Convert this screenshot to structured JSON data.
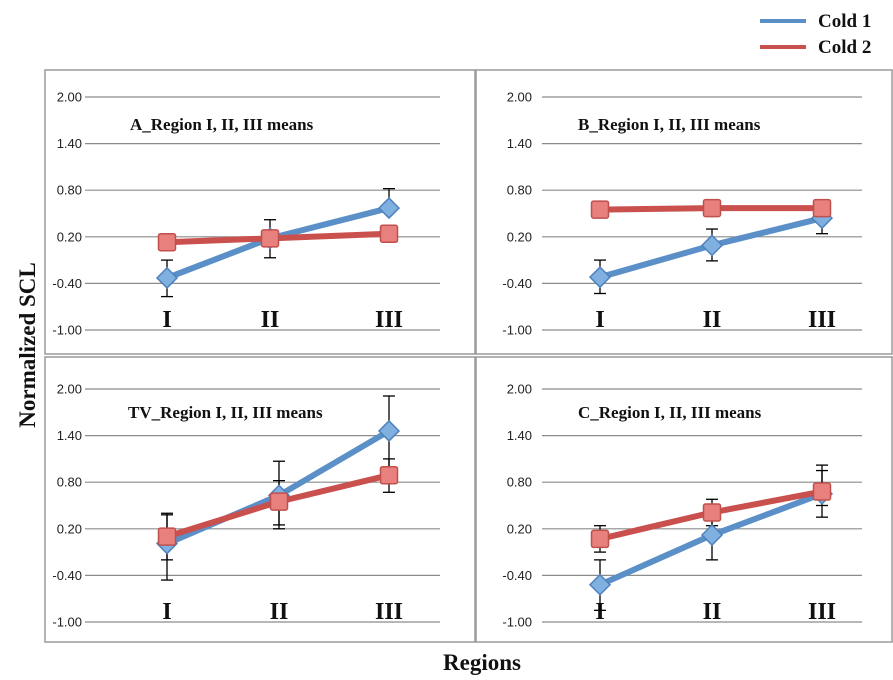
{
  "legend": {
    "entries": [
      {
        "name": "Cold 1",
        "color": "#5b8fc7"
      },
      {
        "name": "Cold 2",
        "color": "#c9504d"
      }
    ]
  },
  "ylabel": "Normalized SCL",
  "xlabel": "Regions",
  "chart_data": [
    {
      "type": "line",
      "title": "A_Region I, II, III means",
      "categories": [
        "I",
        "II",
        "III"
      ],
      "yticks": [
        "2.00",
        "1.40",
        "0.80",
        "0.20",
        "-0.40",
        "-1.00"
      ],
      "ylim": [
        -1.0,
        2.0
      ],
      "series": [
        {
          "name": "Cold 1",
          "values": [
            -0.33,
            0.18,
            0.57
          ],
          "err_low": [
            -0.57,
            -0.07,
            null
          ],
          "err_high": [
            -0.1,
            0.42,
            0.82
          ]
        },
        {
          "name": "Cold 2",
          "values": [
            0.13,
            0.18,
            0.24
          ],
          "err_low": [
            null,
            null,
            null
          ],
          "err_high": [
            null,
            null,
            null
          ]
        }
      ]
    },
    {
      "type": "line",
      "title": "B_Region I, II, III means",
      "categories": [
        "I",
        "II",
        "III"
      ],
      "yticks": [
        "2.00",
        "1.40",
        "0.80",
        "0.20",
        "-0.40",
        "-1.00"
      ],
      "ylim": [
        -1.0,
        2.0
      ],
      "series": [
        {
          "name": "Cold 1",
          "values": [
            -0.32,
            0.09,
            0.44
          ],
          "err_low": [
            -0.53,
            -0.11,
            0.24
          ],
          "err_high": [
            -0.1,
            0.3,
            null
          ]
        },
        {
          "name": "Cold 2",
          "values": [
            0.55,
            0.57,
            0.57
          ],
          "err_low": [
            null,
            null,
            null
          ],
          "err_high": [
            null,
            null,
            null
          ]
        }
      ]
    },
    {
      "type": "line",
      "title": "TV_Region I, II, III means",
      "categories": [
        "I",
        "II",
        "III"
      ],
      "yticks": [
        "2.00",
        "1.40",
        "0.80",
        "0.20",
        "-0.40",
        "-1.00"
      ],
      "ylim": [
        -1.0,
        2.0
      ],
      "series": [
        {
          "name": "Cold 1",
          "values": [
            0.01,
            0.63,
            1.46
          ],
          "err_low": [
            -0.46,
            0.2,
            1.0
          ],
          "err_high": [
            0.4,
            1.07,
            1.91
          ]
        },
        {
          "name": "Cold 2",
          "values": [
            0.1,
            0.55,
            0.89
          ],
          "err_low": [
            -0.2,
            0.25,
            0.67
          ],
          "err_high": [
            0.38,
            0.82,
            1.1
          ]
        }
      ]
    },
    {
      "type": "line",
      "title": "C_Region I, II, III means",
      "categories": [
        "I",
        "II",
        "III"
      ],
      "yticks": [
        "2.00",
        "1.40",
        "0.80",
        "0.20",
        "-0.40",
        "-1.00"
      ],
      "ylim": [
        -1.0,
        2.0
      ],
      "series": [
        {
          "name": "Cold 1",
          "values": [
            -0.52,
            0.12,
            0.65
          ],
          "err_low": [
            -0.85,
            -0.2,
            0.35
          ],
          "err_high": [
            -0.2,
            0.44,
            0.95
          ]
        },
        {
          "name": "Cold 2",
          "values": [
            0.07,
            0.41,
            0.68
          ],
          "err_low": [
            -0.1,
            0.24,
            0.5
          ],
          "err_high": [
            0.24,
            0.58,
            1.02
          ]
        }
      ]
    }
  ]
}
